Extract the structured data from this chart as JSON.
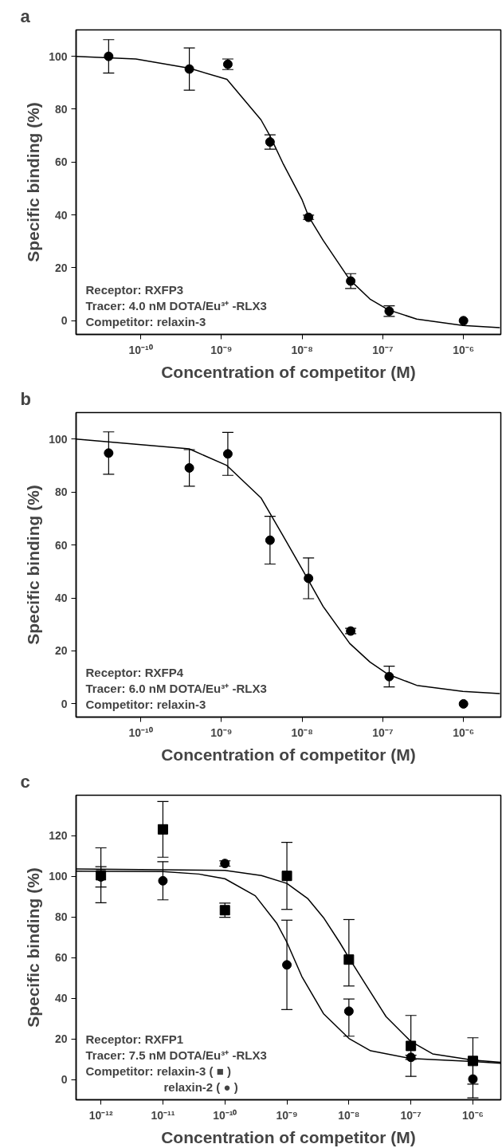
{
  "chart_data": [
    {
      "type": "scatter",
      "title": "a",
      "xlabel": "Concentration of competitor (M)",
      "ylabel": "Specific binding (%)",
      "log": "x",
      "grid": false,
      "xlim": [
        1.58e-11,
        2.9e-06
      ],
      "ylim": [
        -5.2,
        110
      ],
      "xticks": [
        {
          "value": 1e-10,
          "label": "10⁻¹⁰"
        },
        {
          "value": 1e-09,
          "label": "10⁻⁹"
        },
        {
          "value": 1e-08,
          "label": "10⁻⁸"
        },
        {
          "value": 1e-07,
          "label": "10⁻⁷"
        },
        {
          "value": 1e-06,
          "label": "10⁻⁶"
        }
      ],
      "yticks": [
        0,
        20,
        40,
        60,
        80,
        100
      ],
      "annotations": [
        "Receptor: RXFP3",
        "Tracer: 4.0 nM DOTA/Eu³⁺ -RLX3",
        "Competitor: relaxin-3"
      ],
      "series": [
        {
          "marker": "circle",
          "color": "#000000",
          "x": [
            4e-11,
            4e-10,
            1.2e-09,
            4e-09,
            1.2e-08,
            4e-08,
            1.2e-07,
            1e-06
          ],
          "values": [
            100,
            95.2,
            97,
            67.6,
            39.1,
            15,
            3.6,
            0
          ],
          "errors": [
            6.3,
            8,
            2,
            2.7,
            0.8,
            2.8,
            2,
            null
          ]
        },
        {
          "type": "line",
          "color": "#000000",
          "x": [
            1.58e-11,
            8.7e-11,
            3.98e-10,
            1.17e-09,
            3.09e-09,
            3.98e-09,
            5.75e-09,
            1e-08,
            1.2e-08,
            1.82e-08,
            3.89e-08,
            6.92e-08,
            1.17e-07,
            2.63e-07,
            9.8e-07,
            2.82e-06
          ],
          "values": [
            100,
            99,
            95.5,
            91.3,
            76,
            70,
            59.7,
            45.7,
            39.5,
            30.4,
            15.5,
            8.2,
            4.1,
            0.6,
            -1.8,
            -2.6
          ]
        }
      ]
    },
    {
      "type": "scatter",
      "title": "b",
      "xlabel": "Concentration of competitor (M)",
      "ylabel": "Specific binding (%)",
      "log": "x",
      "grid": false,
      "xlim": [
        1.58e-11,
        2.9e-06
      ],
      "ylim": [
        -5,
        110
      ],
      "xticks": [
        {
          "value": 1e-10,
          "label": "10⁻¹⁰"
        },
        {
          "value": 1e-09,
          "label": "10⁻⁹"
        },
        {
          "value": 1e-08,
          "label": "10⁻⁸"
        },
        {
          "value": 1e-07,
          "label": "10⁻⁷"
        },
        {
          "value": 1e-06,
          "label": "10⁻⁶"
        }
      ],
      "yticks": [
        0,
        20,
        40,
        60,
        80,
        100
      ],
      "annotations": [
        "Receptor: RXFP4",
        "Tracer: 6.0 nM DOTA/Eu³⁺ -RLX3",
        "Competitor: relaxin-3"
      ],
      "series": [
        {
          "marker": "circle",
          "color": "#000000",
          "x": [
            4e-11,
            4e-10,
            1.2e-09,
            4e-09,
            1.2e-08,
            4e-08,
            1.2e-07,
            1e-06
          ],
          "values": [
            94.7,
            89.1,
            94.4,
            61.8,
            47.4,
            27.5,
            10.3,
            0
          ],
          "errors": [
            8,
            6.9,
            8.1,
            9,
            7.7,
            1,
            3.9,
            null
          ]
        },
        {
          "type": "line",
          "color": "#000000",
          "x": [
            1.58e-11,
            3.98e-10,
            1.17e-09,
            3.09e-09,
            5.75e-09,
            1e-08,
            1.82e-08,
            3.89e-08,
            6.92e-08,
            1.17e-07,
            2.63e-07,
            9.8e-07,
            2.82e-06
          ],
          "values": [
            100,
            96.3,
            90,
            77.8,
            63.7,
            50.9,
            36.8,
            22.8,
            15.8,
            11.1,
            7,
            4.7,
            3.9
          ]
        }
      ]
    },
    {
      "type": "scatter",
      "title": "c",
      "xlabel": "Concentration of competitor (M)",
      "ylabel": "Specific binding (%)",
      "log": "x",
      "grid": false,
      "xlim": [
        3.98e-13,
        2.82e-06
      ],
      "ylim": [
        -9.9,
        140
      ],
      "xticks": [
        {
          "value": 1e-12,
          "label": "10⁻¹²"
        },
        {
          "value": 1e-11,
          "label": "10⁻¹¹"
        },
        {
          "value": 1e-10,
          "label": "10⁻¹⁰"
        },
        {
          "value": 1e-09,
          "label": "10⁻⁹"
        },
        {
          "value": 1e-08,
          "label": "10⁻⁸"
        },
        {
          "value": 1e-07,
          "label": "10⁻⁷"
        },
        {
          "value": 1e-06,
          "label": "10⁻⁶"
        }
      ],
      "yticks": [
        0,
        20,
        40,
        60,
        80,
        100,
        120
      ],
      "annotations": [
        "Receptor: RXFP1",
        "Tracer: 7.5 nM DOTA/Eu³⁺ -RLX3",
        "Competitor: relaxin-3 ( ■ )",
        "relaxin-2 ( ● )"
      ],
      "series": [
        {
          "marker": "square",
          "color": "#000000",
          "x": [
            1e-12,
            1e-11,
            1e-10,
            1e-09,
            1e-08,
            1e-07,
            1e-06
          ],
          "values": [
            100.6,
            123.2,
            83.4,
            100.3,
            59.1,
            16.6,
            9.2
          ],
          "errors": [
            13.5,
            13.7,
            3.5,
            16.5,
            [
              46.1,
              78.8
            ],
            15,
            11.4
          ]
        },
        {
          "marker": "circle",
          "color": "#000000",
          "x": [
            1e-12,
            1e-11,
            1e-10,
            1e-09,
            1e-08,
            1e-07,
            1e-06
          ],
          "values": [
            99.8,
            97.9,
            106.4,
            56.5,
            33.7,
            11,
            0.3
          ],
          "errors": [
            5,
            9.4,
            1.3,
            22,
            [
              21.4,
              39.7
            ],
            1,
            9.3
          ]
        },
        {
          "type": "line",
          "color": "#000000",
          "x": [
            3.98e-13,
            1e-10,
            3.89e-10,
            1e-09,
            2.19e-09,
            3.89e-09,
            7.08e-09,
            1e-08,
            1.78e-08,
            3.98e-08,
            1e-07,
            2.24e-07,
            1e-06,
            2.82e-06
          ],
          "values": [
            103.7,
            103,
            100.5,
            96.6,
            89,
            79.8,
            67.6,
            60,
            47.8,
            31,
            18.8,
            12.7,
            9.6,
            8.5
          ]
        },
        {
          "type": "line",
          "color": "#000000",
          "x": [
            3.98e-13,
            1e-11,
            3.8e-11,
            1e-10,
            3.09e-10,
            6.92e-10,
            1e-09,
            1.74e-09,
            3.89e-09,
            1e-08,
            2.24e-08,
            1e-07,
            1e-06,
            2.82e-06
          ],
          "values": [
            102.6,
            102.4,
            101.2,
            98.9,
            90.5,
            76.8,
            67.6,
            50.8,
            32.5,
            20.3,
            14.2,
            10.4,
            8.9,
            8.1
          ]
        }
      ]
    }
  ]
}
